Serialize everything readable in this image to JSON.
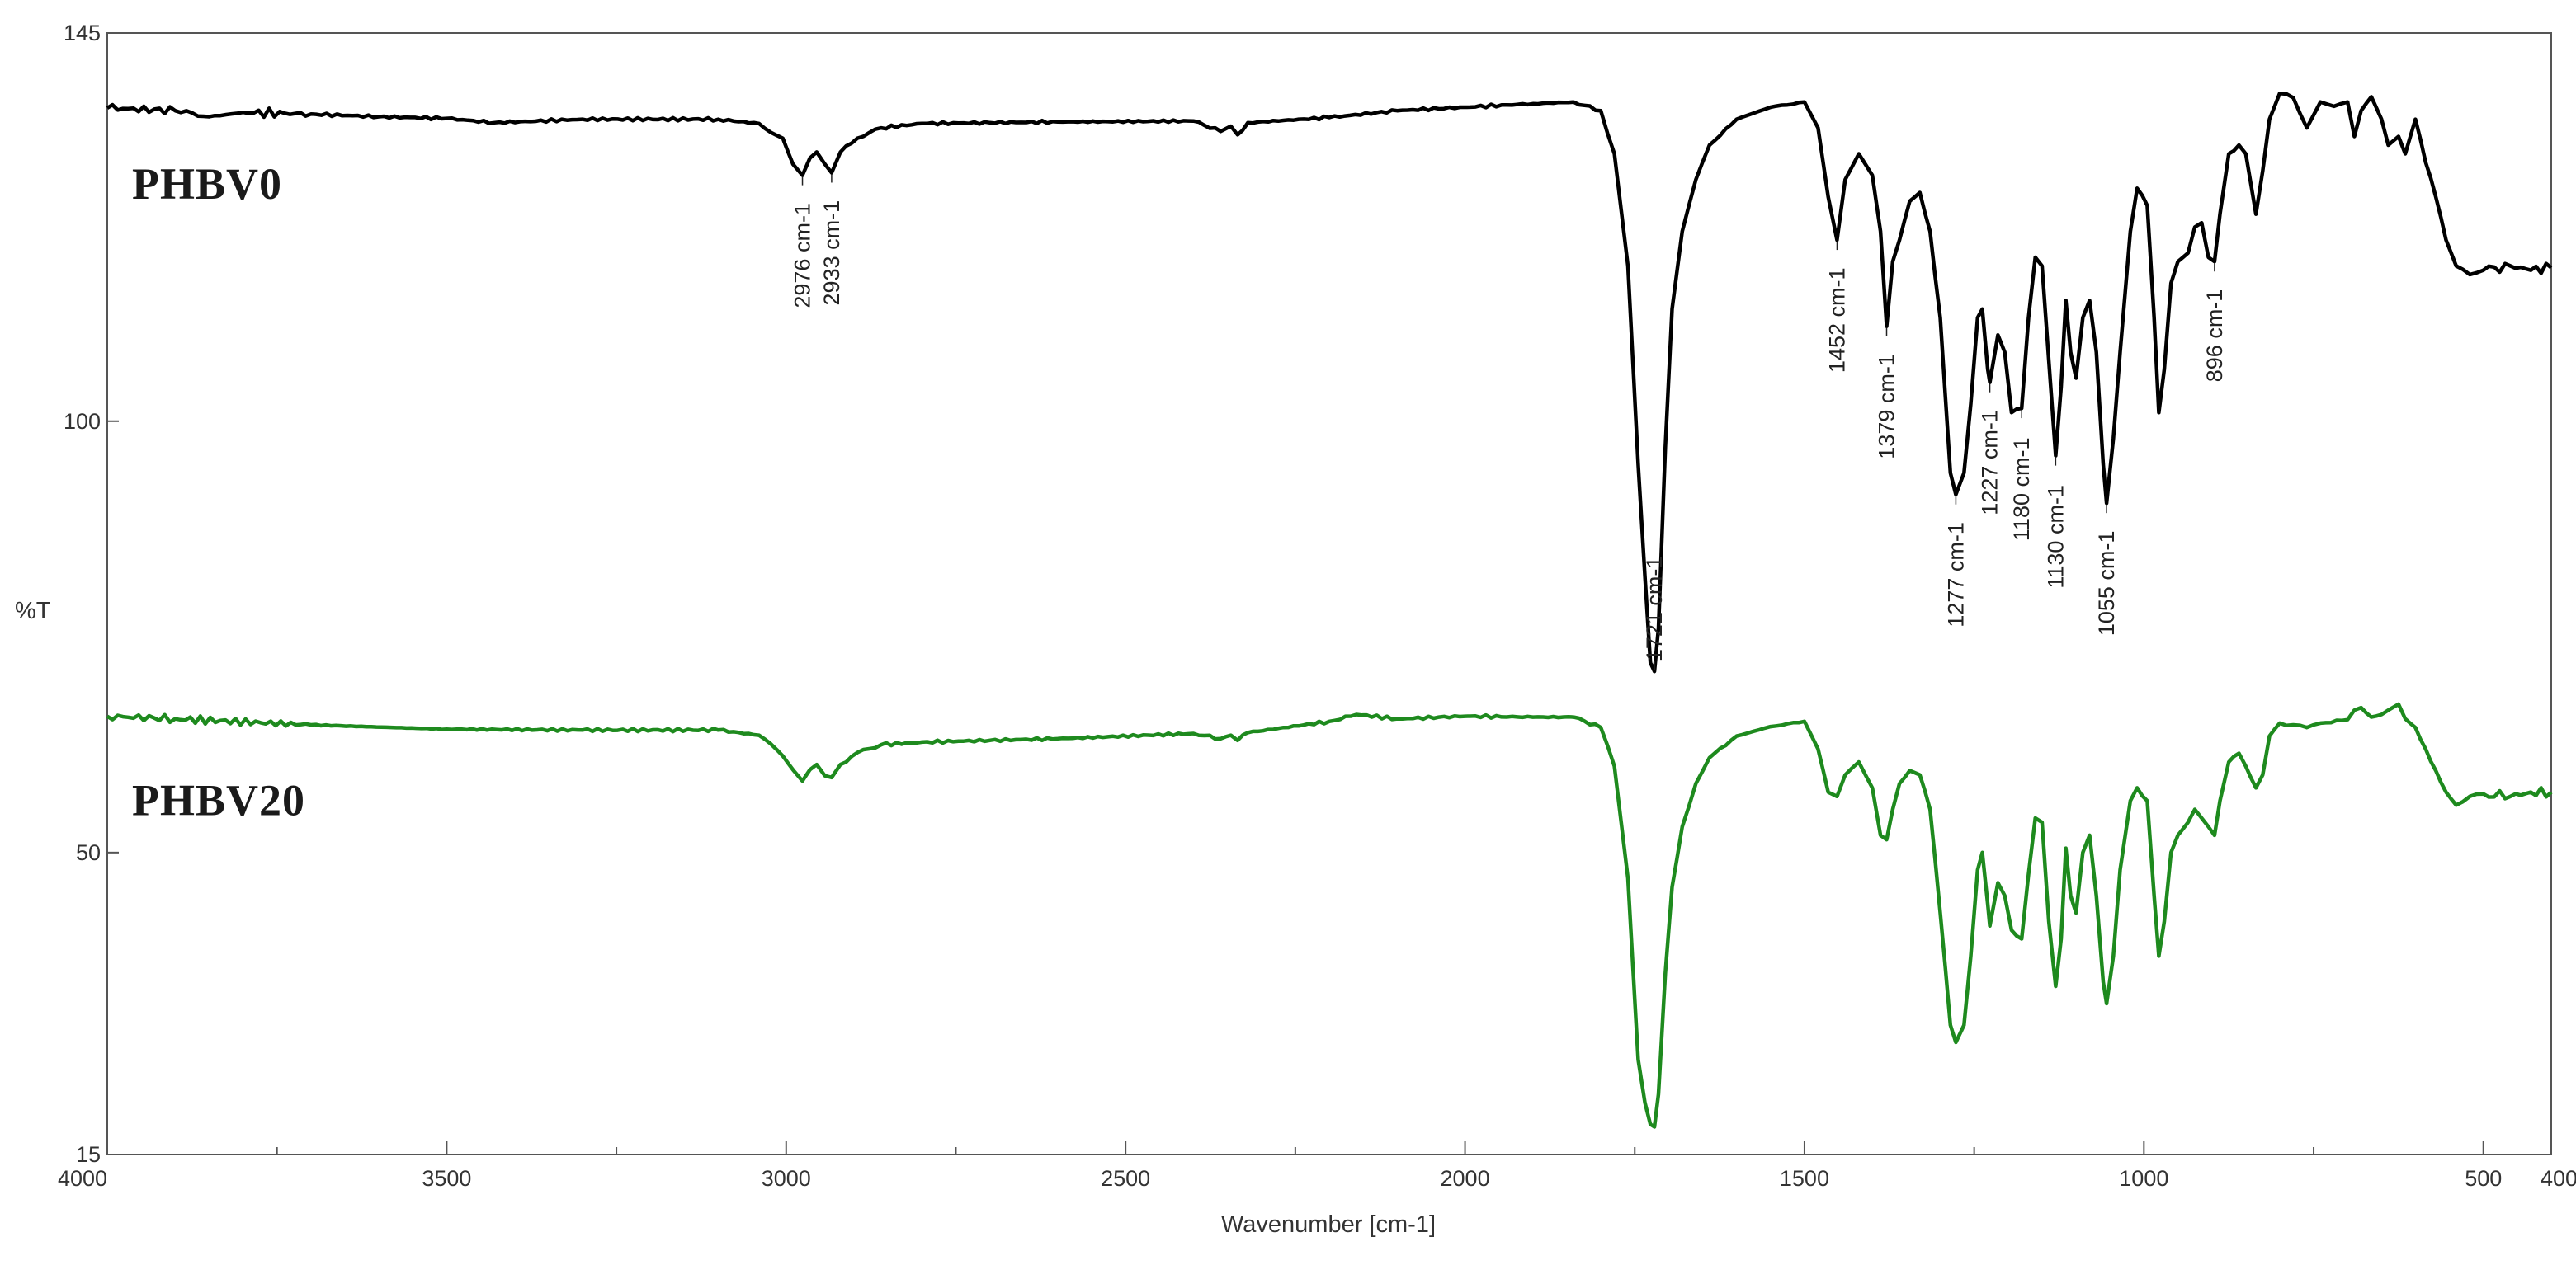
{
  "chart_data": {
    "type": "line",
    "title": "",
    "xlabel": "Wavenumber [cm-1]",
    "ylabel": "%T",
    "xlim": [
      4000,
      400
    ],
    "ylim": [
      15,
      145
    ],
    "x_ticks": [
      4000,
      3500,
      3000,
      2500,
      2000,
      1500,
      1000,
      500,
      400
    ],
    "y_ticks": [
      145,
      100,
      50,
      15
    ],
    "grid": false,
    "series": [
      {
        "name": "PHBV0",
        "color": "#000000",
        "points": [
          [
            4000,
            136.3
          ],
          [
            3900,
            136.0
          ],
          [
            3850,
            135.3
          ],
          [
            3800,
            135.8
          ],
          [
            3700,
            135.6
          ],
          [
            3600,
            135.3
          ],
          [
            3500,
            135.1
          ],
          [
            3430,
            134.6
          ],
          [
            3300,
            135.0
          ],
          [
            3100,
            135.0
          ],
          [
            3040,
            134.5
          ],
          [
            3005,
            132.8
          ],
          [
            2990,
            129.8
          ],
          [
            2976,
            128.5
          ],
          [
            2965,
            130.5
          ],
          [
            2955,
            131.2
          ],
          [
            2943,
            129.8
          ],
          [
            2933,
            128.8
          ],
          [
            2920,
            131.2
          ],
          [
            2895,
            132.8
          ],
          [
            2860,
            134.0
          ],
          [
            2800,
            134.5
          ],
          [
            2700,
            134.6
          ],
          [
            2600,
            134.7
          ],
          [
            2400,
            134.8
          ],
          [
            2360,
            133.6
          ],
          [
            2345,
            134.2
          ],
          [
            2335,
            133.2
          ],
          [
            2320,
            134.6
          ],
          [
            2200,
            135.2
          ],
          [
            2100,
            136.0
          ],
          [
            2000,
            136.4
          ],
          [
            1900,
            136.8
          ],
          [
            1840,
            137.0
          ],
          [
            1800,
            136.0
          ],
          [
            1780,
            131.0
          ],
          [
            1760,
            118.0
          ],
          [
            1745,
            95.0
          ],
          [
            1735,
            82.0
          ],
          [
            1727,
            72.0
          ],
          [
            1721,
            71.0
          ],
          [
            1715,
            76.0
          ],
          [
            1705,
            97.0
          ],
          [
            1695,
            113.0
          ],
          [
            1680,
            122.0
          ],
          [
            1660,
            128.0
          ],
          [
            1640,
            132.0
          ],
          [
            1600,
            135.0
          ],
          [
            1550,
            136.4
          ],
          [
            1500,
            137.0
          ],
          [
            1480,
            134.0
          ],
          [
            1465,
            126.0
          ],
          [
            1452,
            121.0
          ],
          [
            1440,
            128.0
          ],
          [
            1420,
            131.0
          ],
          [
            1400,
            128.5
          ],
          [
            1388,
            122.0
          ],
          [
            1379,
            111.0
          ],
          [
            1370,
            118.5
          ],
          [
            1360,
            121.0
          ],
          [
            1345,
            125.5
          ],
          [
            1330,
            126.5
          ],
          [
            1315,
            122.0
          ],
          [
            1300,
            112.0
          ],
          [
            1285,
            94.0
          ],
          [
            1277,
            91.5
          ],
          [
            1265,
            94.0
          ],
          [
            1255,
            102.0
          ],
          [
            1245,
            112.0
          ],
          [
            1238,
            113.0
          ],
          [
            1230,
            106.0
          ],
          [
            1227,
            104.5
          ],
          [
            1215,
            110.0
          ],
          [
            1205,
            108.0
          ],
          [
            1195,
            101.0
          ],
          [
            1180,
            101.5
          ],
          [
            1170,
            112.0
          ],
          [
            1160,
            119.0
          ],
          [
            1150,
            118.0
          ],
          [
            1140,
            107.0
          ],
          [
            1130,
            96.0
          ],
          [
            1122,
            104.0
          ],
          [
            1115,
            114.0
          ],
          [
            1108,
            108.0
          ],
          [
            1100,
            105.0
          ],
          [
            1090,
            112.0
          ],
          [
            1080,
            114.0
          ],
          [
            1070,
            108.0
          ],
          [
            1060,
            95.0
          ],
          [
            1055,
            90.5
          ],
          [
            1045,
            98.0
          ],
          [
            1035,
            108.0
          ],
          [
            1020,
            122.0
          ],
          [
            1010,
            127.0
          ],
          [
            995,
            125.0
          ],
          [
            985,
            112.0
          ],
          [
            978,
            101.0
          ],
          [
            970,
            106.0
          ],
          [
            960,
            116.0
          ],
          [
            950,
            118.5
          ],
          [
            935,
            119.5
          ],
          [
            925,
            122.5
          ],
          [
            915,
            123.0
          ],
          [
            905,
            119.0
          ],
          [
            896,
            118.5
          ],
          [
            888,
            124.0
          ],
          [
            875,
            131.0
          ],
          [
            860,
            132.0
          ],
          [
            850,
            131.0
          ],
          [
            835,
            124.0
          ],
          [
            825,
            129.0
          ],
          [
            815,
            135.0
          ],
          [
            800,
            138.0
          ],
          [
            780,
            137.5
          ],
          [
            760,
            134.0
          ],
          [
            750,
            135.5
          ],
          [
            740,
            137.0
          ],
          [
            720,
            136.5
          ],
          [
            700,
            137.0
          ],
          [
            690,
            133.0
          ],
          [
            680,
            136.0
          ],
          [
            665,
            137.6
          ],
          [
            650,
            135.0
          ],
          [
            640,
            132.0
          ],
          [
            625,
            133.0
          ],
          [
            615,
            131.0
          ],
          [
            600,
            135.0
          ],
          [
            585,
            130.0
          ],
          [
            570,
            126.0
          ],
          [
            555,
            121.0
          ],
          [
            540,
            118.0
          ],
          [
            520,
            117.0
          ],
          [
            500,
            117.5
          ],
          [
            460,
            118.0
          ],
          [
            430,
            117.5
          ],
          [
            400,
            117.8
          ]
        ]
      },
      {
        "name": "PHBV20",
        "color": "#1e8a1e",
        "points": [
          [
            4000,
            65.8
          ],
          [
            3900,
            65.5
          ],
          [
            3700,
            64.8
          ],
          [
            3500,
            64.3
          ],
          [
            3300,
            64.2
          ],
          [
            3100,
            64.2
          ],
          [
            3040,
            63.6
          ],
          [
            3005,
            61.2
          ],
          [
            2990,
            59.6
          ],
          [
            2976,
            58.3
          ],
          [
            2965,
            59.6
          ],
          [
            2955,
            60.2
          ],
          [
            2943,
            58.9
          ],
          [
            2933,
            58.7
          ],
          [
            2920,
            60.2
          ],
          [
            2895,
            61.6
          ],
          [
            2860,
            62.5
          ],
          [
            2800,
            62.8
          ],
          [
            2700,
            63.0
          ],
          [
            2600,
            63.2
          ],
          [
            2400,
            63.8
          ],
          [
            2360,
            63.2
          ],
          [
            2345,
            63.6
          ],
          [
            2335,
            63.0
          ],
          [
            2320,
            63.9
          ],
          [
            2200,
            65.2
          ],
          [
            2160,
            66.0
          ],
          [
            2100,
            65.5
          ],
          [
            2000,
            65.8
          ],
          [
            1900,
            65.7
          ],
          [
            1840,
            65.7
          ],
          [
            1800,
            64.5
          ],
          [
            1780,
            60.0
          ],
          [
            1760,
            47.0
          ],
          [
            1745,
            26.0
          ],
          [
            1735,
            21.0
          ],
          [
            1727,
            18.5
          ],
          [
            1721,
            18.2
          ],
          [
            1715,
            22.0
          ],
          [
            1705,
            36.0
          ],
          [
            1695,
            46.0
          ],
          [
            1680,
            53.0
          ],
          [
            1660,
            58.0
          ],
          [
            1640,
            61.0
          ],
          [
            1600,
            63.5
          ],
          [
            1550,
            64.6
          ],
          [
            1500,
            65.2
          ],
          [
            1480,
            62.0
          ],
          [
            1465,
            57.0
          ],
          [
            1452,
            56.5
          ],
          [
            1440,
            59.0
          ],
          [
            1420,
            60.5
          ],
          [
            1400,
            57.5
          ],
          [
            1388,
            52.0
          ],
          [
            1379,
            51.5
          ],
          [
            1370,
            55.0
          ],
          [
            1360,
            58.0
          ],
          [
            1345,
            59.5
          ],
          [
            1330,
            59.0
          ],
          [
            1315,
            55.0
          ],
          [
            1300,
            43.0
          ],
          [
            1285,
            30.0
          ],
          [
            1277,
            28.0
          ],
          [
            1265,
            30.0
          ],
          [
            1255,
            38.0
          ],
          [
            1245,
            48.0
          ],
          [
            1238,
            50.0
          ],
          [
            1230,
            44.0
          ],
          [
            1227,
            41.5
          ],
          [
            1215,
            46.5
          ],
          [
            1205,
            45.0
          ],
          [
            1195,
            41.0
          ],
          [
            1180,
            40.0
          ],
          [
            1170,
            47.5
          ],
          [
            1160,
            54.0
          ],
          [
            1150,
            53.5
          ],
          [
            1140,
            42.0
          ],
          [
            1130,
            34.5
          ],
          [
            1122,
            40.0
          ],
          [
            1115,
            50.5
          ],
          [
            1108,
            45.0
          ],
          [
            1100,
            43.0
          ],
          [
            1090,
            50.0
          ],
          [
            1080,
            52.0
          ],
          [
            1070,
            45.0
          ],
          [
            1060,
            35.0
          ],
          [
            1055,
            32.5
          ],
          [
            1045,
            38.0
          ],
          [
            1035,
            48.0
          ],
          [
            1020,
            56.0
          ],
          [
            1010,
            57.5
          ],
          [
            995,
            56.0
          ],
          [
            985,
            45.0
          ],
          [
            978,
            38.0
          ],
          [
            970,
            42.0
          ],
          [
            960,
            50.0
          ],
          [
            950,
            52.0
          ],
          [
            935,
            53.5
          ],
          [
            925,
            55.0
          ],
          [
            915,
            54.0
          ],
          [
            905,
            53.0
          ],
          [
            896,
            52.0
          ],
          [
            888,
            56.0
          ],
          [
            875,
            60.5
          ],
          [
            860,
            61.5
          ],
          [
            850,
            60.0
          ],
          [
            835,
            57.5
          ],
          [
            825,
            59.0
          ],
          [
            815,
            63.5
          ],
          [
            800,
            65.0
          ],
          [
            780,
            64.8
          ],
          [
            760,
            64.5
          ],
          [
            740,
            65.0
          ],
          [
            700,
            65.4
          ],
          [
            690,
            66.5
          ],
          [
            680,
            66.8
          ],
          [
            665,
            65.7
          ],
          [
            650,
            66.0
          ],
          [
            640,
            66.5
          ],
          [
            625,
            67.2
          ],
          [
            615,
            65.5
          ],
          [
            600,
            64.5
          ],
          [
            585,
            62.0
          ],
          [
            570,
            59.5
          ],
          [
            555,
            57.0
          ],
          [
            540,
            55.5
          ],
          [
            520,
            56.5
          ],
          [
            500,
            56.8
          ],
          [
            460,
            56.5
          ],
          [
            430,
            57.0
          ],
          [
            400,
            57.0
          ]
        ]
      }
    ],
    "annotations": [
      {
        "text": "2976 cm-1",
        "x": 2976,
        "series": "PHBV0"
      },
      {
        "text": "2933 cm-1",
        "x": 2933,
        "series": "PHBV0"
      },
      {
        "text": "1721 cm-1",
        "x": 1721,
        "series": "PHBV0"
      },
      {
        "text": "1452 cm-1",
        "x": 1452,
        "series": "PHBV0"
      },
      {
        "text": "1379 cm-1",
        "x": 1379,
        "series": "PHBV0"
      },
      {
        "text": "1277 cm-1",
        "x": 1277,
        "series": "PHBV0"
      },
      {
        "text": "1227 cm-1",
        "x": 1227,
        "series": "PHBV0"
      },
      {
        "text": "1180 cm-1",
        "x": 1180,
        "series": "PHBV0"
      },
      {
        "text": "1130 cm-1",
        "x": 1130,
        "series": "PHBV0"
      },
      {
        "text": "1055 cm-1",
        "x": 1055,
        "series": "PHBV0"
      },
      {
        "text": "896 cm-1",
        "x": 896,
        "series": "PHBV0"
      }
    ]
  }
}
